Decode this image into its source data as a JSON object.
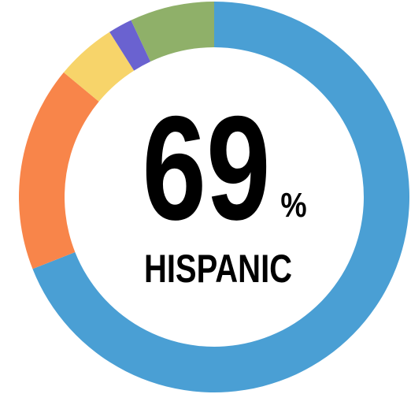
{
  "chart_data": {
    "type": "donut",
    "categories": [
      "HISPANIC",
      null,
      null,
      null,
      null
    ],
    "values": [
      69,
      17,
      5,
      2,
      7
    ],
    "colors": [
      "#4a9fd4",
      "#f8854a",
      "#f7d46a",
      "#6a62d0",
      "#8fb069"
    ],
    "unit": "%"
  }
}
